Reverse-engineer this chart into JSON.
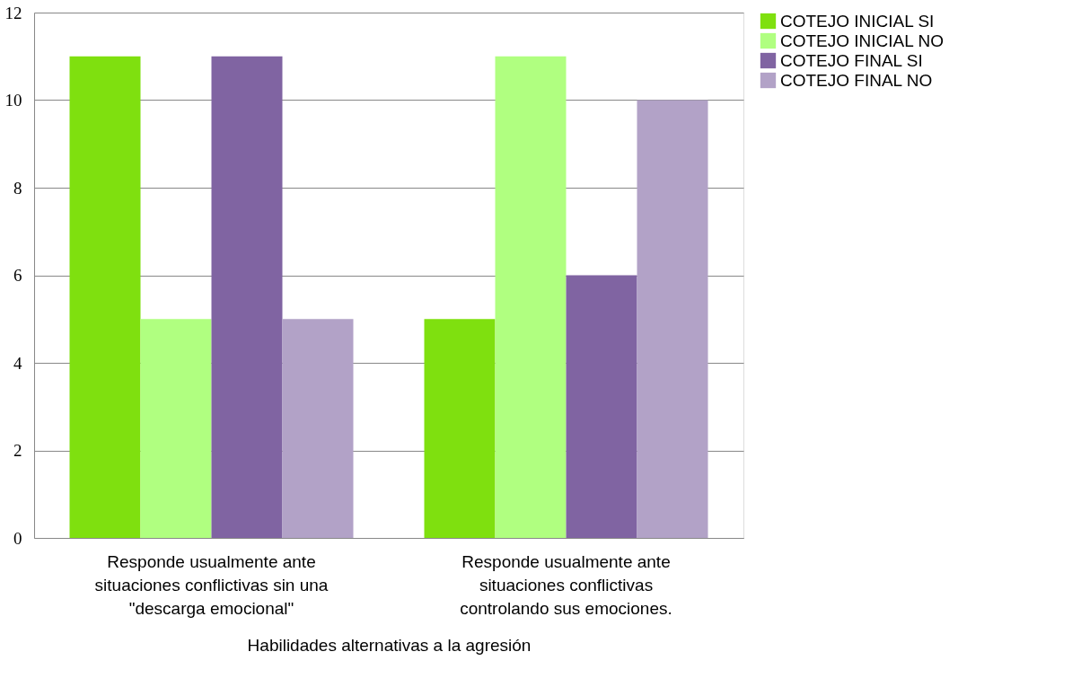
{
  "chart_data": {
    "type": "bar",
    "xlabel": "Habilidades alternativas a la agresión",
    "categories": [
      "Responde usualmente ante situaciones conflictivas sin una \"descarga emocional\"",
      "Responde usualmente ante situaciones conflictivas controlando sus emociones."
    ],
    "series": [
      {
        "name": "COTEJO INICIAL SI",
        "color": "#7fe00f",
        "values": [
          11,
          5
        ]
      },
      {
        "name": "COTEJO INICIAL NO",
        "color": "#b0ff80",
        "values": [
          5,
          11
        ]
      },
      {
        "name": "COTEJO FINAL SI",
        "color": "#8064a2",
        "values": [
          11,
          6
        ]
      },
      {
        "name": "COTEJO FINAL NO",
        "color": "#b2a2c7",
        "values": [
          5,
          10
        ]
      }
    ],
    "ylim": [
      0,
      12
    ],
    "yticks": [
      0,
      2,
      4,
      6,
      8,
      10,
      12
    ],
    "grid": "y",
    "legend": "right"
  }
}
